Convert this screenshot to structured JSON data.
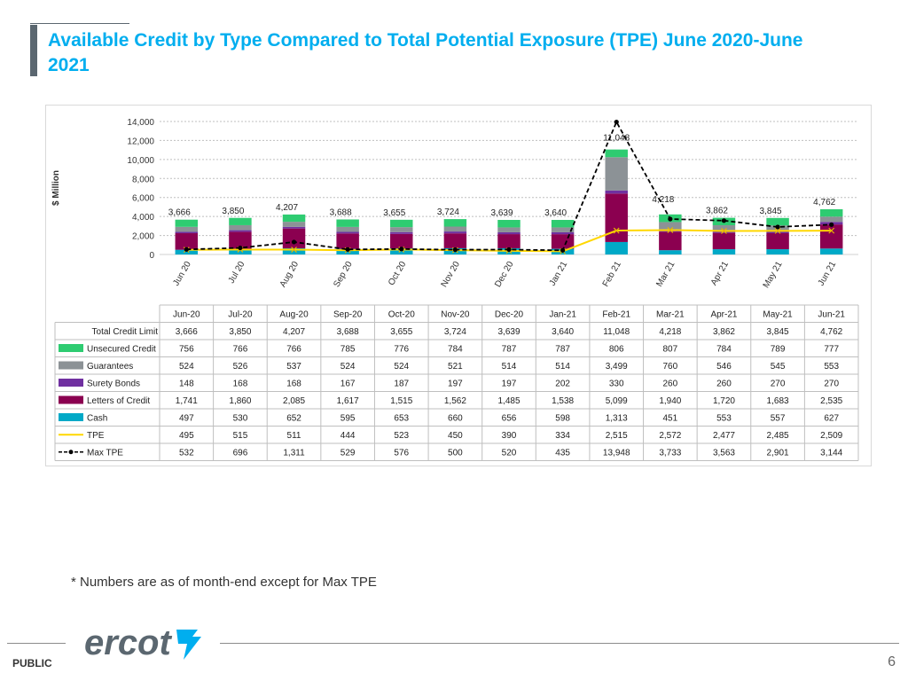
{
  "slide": {
    "title": "Available Credit by Type Compared to Total Potential Exposure (TPE) June 2020-June 2021",
    "footnote": "* Numbers are as of month-end except for Max TPE",
    "classification": "PUBLIC",
    "page_number": "6",
    "logo_text": "ercot"
  },
  "colors": {
    "title": "#00aeef",
    "unsecured": "#2ecc71",
    "guarantees": "#8c9296",
    "surety": "#7030a0",
    "letters": "#8b0050",
    "cash": "#00a9c7",
    "tpe": "#ffd700",
    "max_tpe": "#000000"
  },
  "chart_data": {
    "type": "bar",
    "stacked": true,
    "ylabel": "$ Million",
    "ylim": [
      0,
      14000
    ],
    "yticks": [
      "0",
      "2,000",
      "4,000",
      "6,000",
      "8,000",
      "10,000",
      "12,000",
      "14,000"
    ],
    "ytick_values": [
      0,
      2000,
      4000,
      6000,
      8000,
      10000,
      12000,
      14000
    ],
    "categories": [
      "Jun-20",
      "Jul-20",
      "Aug-20",
      "Sep-20",
      "Oct-20",
      "Nov-20",
      "Dec-20",
      "Jan-21",
      "Feb-21",
      "Mar-21",
      "Apr-21",
      "May-21",
      "Jun-21"
    ],
    "axis_labels": [
      "Jun 20",
      "Jul 20",
      "Aug 20",
      "Sep 20",
      "Oct 20",
      "Nov 20",
      "Dec 20",
      "Jan 21",
      "Feb 21",
      "Mar 21",
      "Apr 21",
      "May 21",
      "Jun 21"
    ],
    "total_label": "Total Credit Limit",
    "totals": [
      3666,
      3850,
      4207,
      3688,
      3655,
      3724,
      3639,
      3640,
      11048,
      4218,
      3862,
      3845,
      4762
    ],
    "total_labels": [
      "3,666",
      "3,850",
      "4,207",
      "3,688",
      "3,655",
      "3,724",
      "3,639",
      "3,640",
      "11,048",
      "4,218",
      "3,862",
      "3,845",
      "4,762"
    ],
    "series": [
      {
        "name": "Unsecured Credit",
        "kind": "bar",
        "color": "#2ecc71",
        "values": [
          756,
          766,
          766,
          785,
          776,
          784,
          787,
          787,
          806,
          807,
          784,
          789,
          777
        ],
        "labels": [
          "756",
          "766",
          "766",
          "785",
          "776",
          "784",
          "787",
          "787",
          "806",
          "807",
          "784",
          "789",
          "777"
        ]
      },
      {
        "name": "Guarantees",
        "kind": "bar",
        "color": "#8c9296",
        "values": [
          524,
          526,
          537,
          524,
          524,
          521,
          514,
          514,
          3499,
          760,
          546,
          545,
          553
        ],
        "labels": [
          "524",
          "526",
          "537",
          "524",
          "524",
          "521",
          "514",
          "514",
          "3,499",
          "760",
          "546",
          "545",
          "553"
        ]
      },
      {
        "name": "Surety Bonds",
        "kind": "bar",
        "color": "#7030a0",
        "values": [
          148,
          168,
          168,
          167,
          187,
          197,
          197,
          202,
          330,
          260,
          260,
          270,
          270
        ],
        "labels": [
          "148",
          "168",
          "168",
          "167",
          "187",
          "197",
          "197",
          "202",
          "330",
          "260",
          "260",
          "270",
          "270"
        ]
      },
      {
        "name": "Letters of Credit",
        "kind": "bar",
        "color": "#8b0050",
        "values": [
          1741,
          1860,
          2085,
          1617,
          1515,
          1562,
          1485,
          1538,
          5099,
          1940,
          1720,
          1683,
          2535
        ],
        "labels": [
          "1,741",
          "1,860",
          "2,085",
          "1,617",
          "1,515",
          "1,562",
          "1,485",
          "1,538",
          "5,099",
          "1,940",
          "1,720",
          "1,683",
          "2,535"
        ]
      },
      {
        "name": "Cash",
        "kind": "bar",
        "color": "#00a9c7",
        "values": [
          497,
          530,
          652,
          595,
          653,
          660,
          656,
          598,
          1313,
          451,
          553,
          557,
          627
        ],
        "labels": [
          "497",
          "530",
          "652",
          "595",
          "653",
          "660",
          "656",
          "598",
          "1,313",
          "451",
          "553",
          "557",
          "627"
        ]
      },
      {
        "name": "TPE",
        "kind": "line",
        "color": "#ffd700",
        "values": [
          495,
          515,
          511,
          444,
          523,
          450,
          390,
          334,
          2515,
          2572,
          2477,
          2485,
          2509
        ],
        "labels": [
          "495",
          "515",
          "511",
          "444",
          "523",
          "450",
          "390",
          "334",
          "2,515",
          "2,572",
          "2,477",
          "2,485",
          "2,509"
        ]
      },
      {
        "name": "Max TPE",
        "kind": "dashed-line",
        "color": "#000000",
        "values": [
          532,
          696,
          1311,
          529,
          576,
          500,
          520,
          435,
          13948,
          3733,
          3563,
          2901,
          3144
        ],
        "labels": [
          "532",
          "696",
          "1,311",
          "529",
          "576",
          "500",
          "520",
          "435",
          "13,948",
          "3,733",
          "3,563",
          "2,901",
          "3,144"
        ]
      }
    ],
    "stack_order": [
      "Cash",
      "Letters of Credit",
      "Surety Bonds",
      "Guarantees",
      "Unsecured Credit"
    ],
    "legend": "table-below",
    "grid": "horizontal-dotted"
  }
}
